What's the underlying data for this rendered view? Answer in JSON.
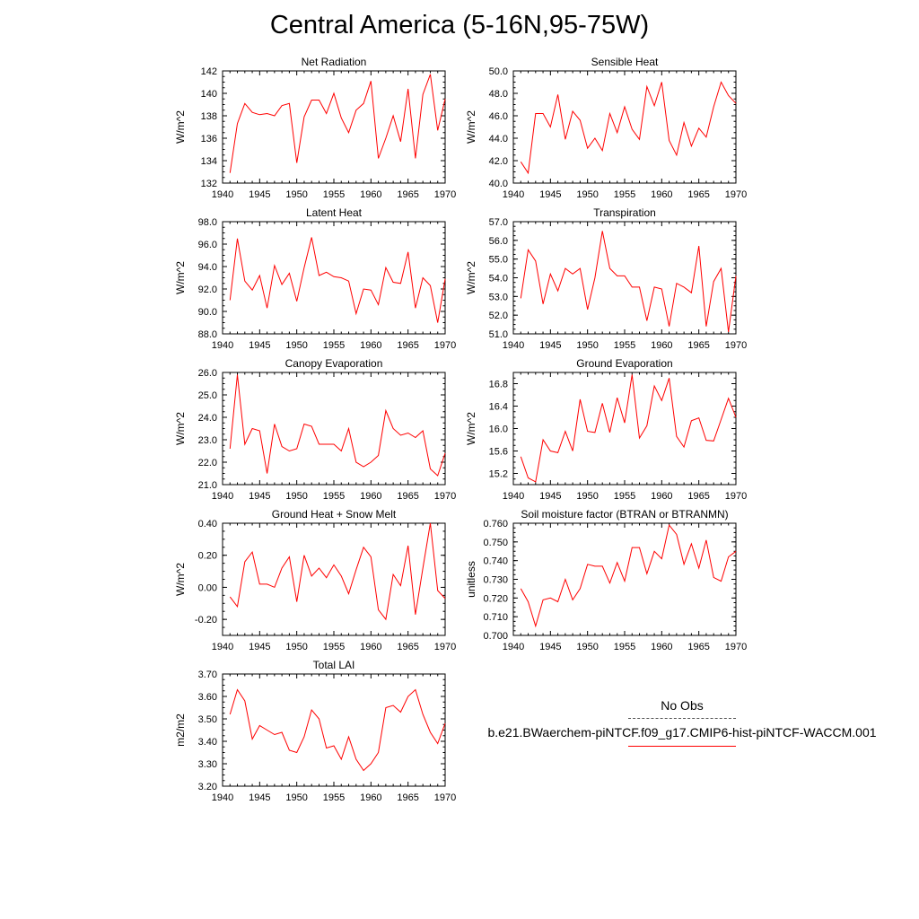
{
  "title": "Central America (5-16N,95-75W)",
  "legend": {
    "header": "No Obs",
    "series_name": "b.e21.BWaerchem-piNTCF.f09_g17.CMIP6-hist-piNTCF-WACCM.001",
    "line_color": "#ff0000"
  },
  "chart_data": [
    {
      "type": "line",
      "title": "Net Radiation",
      "ylabel": "W/m^2",
      "xlim": [
        1940,
        1970
      ],
      "ylim": [
        132,
        142
      ],
      "xticks": [
        1940,
        1945,
        1950,
        1955,
        1960,
        1965,
        1970
      ],
      "yticks": [
        132,
        134,
        136,
        138,
        140,
        142
      ],
      "ytick_labels": [
        "132",
        "134",
        "136",
        "138",
        "140",
        "142"
      ],
      "x": [
        1941,
        1942,
        1943,
        1944,
        1945,
        1946,
        1947,
        1948,
        1949,
        1950,
        1951,
        1952,
        1953,
        1954,
        1955,
        1956,
        1957,
        1958,
        1959,
        1960,
        1961,
        1962,
        1963,
        1964,
        1965,
        1966,
        1967,
        1968,
        1969,
        1970
      ],
      "values": [
        132.9,
        137.3,
        139.1,
        138.3,
        138.1,
        138.2,
        138.0,
        138.9,
        139.1,
        133.8,
        137.9,
        139.4,
        139.4,
        138.2,
        140.0,
        137.8,
        136.5,
        138.5,
        139.1,
        141.1,
        134.2,
        136.0,
        138.0,
        135.7,
        140.4,
        134.2,
        139.9,
        141.7,
        136.7,
        139.5
      ]
    },
    {
      "type": "line",
      "title": "Sensible Heat",
      "ylabel": "W/m^2",
      "xlim": [
        1940,
        1970
      ],
      "ylim": [
        40,
        50
      ],
      "xticks": [
        1940,
        1945,
        1950,
        1955,
        1960,
        1965,
        1970
      ],
      "yticks": [
        40,
        42,
        44,
        46,
        48,
        50
      ],
      "ytick_labels": [
        "40.0",
        "42.0",
        "44.0",
        "46.0",
        "48.0",
        "50.0"
      ],
      "x": [
        1941,
        1942,
        1943,
        1944,
        1945,
        1946,
        1947,
        1948,
        1949,
        1950,
        1951,
        1952,
        1953,
        1954,
        1955,
        1956,
        1957,
        1958,
        1959,
        1960,
        1961,
        1962,
        1963,
        1964,
        1965,
        1966,
        1967,
        1968,
        1969,
        1970
      ],
      "values": [
        41.9,
        40.9,
        46.2,
        46.2,
        45.0,
        47.9,
        43.9,
        46.4,
        45.6,
        43.1,
        44.0,
        42.9,
        46.2,
        44.5,
        46.8,
        44.8,
        43.9,
        48.6,
        46.9,
        49.0,
        43.8,
        42.5,
        45.4,
        43.3,
        44.9,
        44.1,
        46.8,
        49.0,
        47.8,
        47.1
      ]
    },
    {
      "type": "line",
      "title": "Latent Heat",
      "ylabel": "W/m^2",
      "xlim": [
        1940,
        1970
      ],
      "ylim": [
        88,
        98
      ],
      "xticks": [
        1940,
        1945,
        1950,
        1955,
        1960,
        1965,
        1970
      ],
      "yticks": [
        88,
        90,
        92,
        94,
        96,
        98
      ],
      "ytick_labels": [
        "88.0",
        "90.0",
        "92.0",
        "94.0",
        "96.0",
        "98.0"
      ],
      "x": [
        1941,
        1942,
        1943,
        1944,
        1945,
        1946,
        1947,
        1948,
        1949,
        1950,
        1951,
        1952,
        1953,
        1954,
        1955,
        1956,
        1957,
        1958,
        1959,
        1960,
        1961,
        1962,
        1963,
        1964,
        1965,
        1966,
        1967,
        1968,
        1969,
        1970
      ],
      "values": [
        91.0,
        96.5,
        92.7,
        91.9,
        93.2,
        90.3,
        94.1,
        92.4,
        93.4,
        90.9,
        93.9,
        96.6,
        93.2,
        93.5,
        93.1,
        93.0,
        92.7,
        89.8,
        92.0,
        91.9,
        90.6,
        93.9,
        92.6,
        92.5,
        95.3,
        90.3,
        93.0,
        92.3,
        89.0,
        92.9
      ]
    },
    {
      "type": "line",
      "title": "Transpiration",
      "ylabel": "W/m^2",
      "xlim": [
        1940,
        1970
      ],
      "ylim": [
        51,
        57
      ],
      "xticks": [
        1940,
        1945,
        1950,
        1955,
        1960,
        1965,
        1970
      ],
      "yticks": [
        51,
        52,
        53,
        54,
        55,
        56,
        57
      ],
      "ytick_labels": [
        "51.0",
        "52.0",
        "53.0",
        "54.0",
        "55.0",
        "56.0",
        "57.0"
      ],
      "x": [
        1941,
        1942,
        1943,
        1944,
        1945,
        1946,
        1947,
        1948,
        1949,
        1950,
        1951,
        1952,
        1953,
        1954,
        1955,
        1956,
        1957,
        1958,
        1959,
        1960,
        1961,
        1962,
        1963,
        1964,
        1965,
        1966,
        1967,
        1968,
        1969,
        1970
      ],
      "values": [
        52.9,
        55.5,
        54.9,
        52.6,
        54.2,
        53.3,
        54.5,
        54.2,
        54.5,
        52.3,
        54.0,
        56.5,
        54.5,
        54.1,
        54.1,
        53.5,
        53.5,
        51.7,
        53.5,
        53.4,
        51.4,
        53.7,
        53.5,
        53.2,
        55.7,
        51.4,
        53.8,
        54.5,
        51.1,
        54.1
      ]
    },
    {
      "type": "line",
      "title": "Canopy Evaporation",
      "ylabel": "W/m^2",
      "xlim": [
        1940,
        1970
      ],
      "ylim": [
        21,
        26
      ],
      "xticks": [
        1940,
        1945,
        1950,
        1955,
        1960,
        1965,
        1970
      ],
      "yticks": [
        21,
        22,
        23,
        24,
        25,
        26
      ],
      "ytick_labels": [
        "21.0",
        "22.0",
        "23.0",
        "24.0",
        "25.0",
        "26.0"
      ],
      "x": [
        1941,
        1942,
        1943,
        1944,
        1945,
        1946,
        1947,
        1948,
        1949,
        1950,
        1951,
        1952,
        1953,
        1954,
        1955,
        1956,
        1957,
        1958,
        1959,
        1960,
        1961,
        1962,
        1963,
        1964,
        1965,
        1966,
        1967,
        1968,
        1969,
        1970
      ],
      "values": [
        22.6,
        25.9,
        22.8,
        23.5,
        23.4,
        21.5,
        23.7,
        22.7,
        22.5,
        22.6,
        23.7,
        23.6,
        22.8,
        22.8,
        22.8,
        22.5,
        23.5,
        22.0,
        21.8,
        22.0,
        22.3,
        24.3,
        23.5,
        23.2,
        23.3,
        23.1,
        23.4,
        21.7,
        21.4,
        22.4
      ]
    },
    {
      "type": "line",
      "title": "Ground Evaporation",
      "ylabel": "W/m^2",
      "xlim": [
        1940,
        1970
      ],
      "ylim": [
        15.0,
        17.0
      ],
      "xticks": [
        1940,
        1945,
        1950,
        1955,
        1960,
        1965,
        1970
      ],
      "yticks": [
        15.2,
        15.6,
        16.0,
        16.4,
        16.8
      ],
      "ytick_labels": [
        "15.2",
        "15.6",
        "16.0",
        "16.4",
        "16.8"
      ],
      "x": [
        1941,
        1942,
        1943,
        1944,
        1945,
        1946,
        1947,
        1948,
        1949,
        1950,
        1951,
        1952,
        1953,
        1954,
        1955,
        1956,
        1957,
        1958,
        1959,
        1960,
        1961,
        1962,
        1963,
        1964,
        1965,
        1966,
        1967,
        1968,
        1969,
        1970
      ],
      "values": [
        15.5,
        15.12,
        15.05,
        15.8,
        15.6,
        15.57,
        15.95,
        15.6,
        16.52,
        15.95,
        15.93,
        16.45,
        15.93,
        16.55,
        16.1,
        16.96,
        15.83,
        16.05,
        16.76,
        16.5,
        16.9,
        15.86,
        15.67,
        16.14,
        16.19,
        15.79,
        15.78,
        16.16,
        16.54,
        16.2
      ]
    },
    {
      "type": "line",
      "title": "Ground Heat + Snow Melt",
      "ylabel": "W/m^2",
      "xlim": [
        1940,
        1970
      ],
      "ylim": [
        -0.3,
        0.4
      ],
      "xticks": [
        1940,
        1945,
        1950,
        1955,
        1960,
        1965,
        1970
      ],
      "yticks": [
        -0.2,
        0.0,
        0.2,
        0.4
      ],
      "ytick_labels": [
        "-0.20",
        "0.00",
        "0.20",
        "0.40"
      ],
      "x": [
        1941,
        1942,
        1943,
        1944,
        1945,
        1946,
        1947,
        1948,
        1949,
        1950,
        1951,
        1952,
        1953,
        1954,
        1955,
        1956,
        1957,
        1958,
        1959,
        1960,
        1961,
        1962,
        1963,
        1964,
        1965,
        1966,
        1967,
        1968,
        1969,
        1970
      ],
      "values": [
        -0.06,
        -0.12,
        0.16,
        0.22,
        0.02,
        0.02,
        0.0,
        0.12,
        0.19,
        -0.09,
        0.2,
        0.07,
        0.12,
        0.06,
        0.14,
        0.07,
        -0.04,
        0.11,
        0.25,
        0.19,
        -0.14,
        -0.2,
        0.08,
        0.01,
        0.26,
        -0.17,
        0.12,
        0.4,
        -0.02,
        -0.07
      ]
    },
    {
      "type": "line",
      "title": "Soil moisture factor (BTRAN or BTRANMN)",
      "ylabel": "unitless",
      "xlim": [
        1940,
        1970
      ],
      "ylim": [
        0.7,
        0.76
      ],
      "xticks": [
        1940,
        1945,
        1950,
        1955,
        1960,
        1965,
        1970
      ],
      "yticks": [
        0.7,
        0.71,
        0.72,
        0.73,
        0.74,
        0.75,
        0.76
      ],
      "ytick_labels": [
        "0.700",
        "0.710",
        "0.720",
        "0.730",
        "0.740",
        "0.750",
        "0.760"
      ],
      "x": [
        1941,
        1942,
        1943,
        1944,
        1945,
        1946,
        1947,
        1948,
        1949,
        1950,
        1951,
        1952,
        1953,
        1954,
        1955,
        1956,
        1957,
        1958,
        1959,
        1960,
        1961,
        1962,
        1963,
        1964,
        1965,
        1966,
        1967,
        1968,
        1969,
        1970
      ],
      "values": [
        0.725,
        0.718,
        0.705,
        0.719,
        0.72,
        0.718,
        0.73,
        0.719,
        0.725,
        0.738,
        0.737,
        0.737,
        0.728,
        0.739,
        0.729,
        0.747,
        0.747,
        0.733,
        0.745,
        0.741,
        0.759,
        0.754,
        0.738,
        0.749,
        0.736,
        0.751,
        0.731,
        0.729,
        0.742,
        0.745
      ]
    },
    {
      "type": "line",
      "title": "Total LAI",
      "ylabel": "m2/m2",
      "xlim": [
        1940,
        1970
      ],
      "ylim": [
        3.2,
        3.7
      ],
      "xticks": [
        1940,
        1945,
        1950,
        1955,
        1960,
        1965,
        1970
      ],
      "yticks": [
        3.2,
        3.3,
        3.4,
        3.5,
        3.6,
        3.7
      ],
      "ytick_labels": [
        "3.20",
        "3.30",
        "3.40",
        "3.50",
        "3.60",
        "3.70"
      ],
      "x": [
        1941,
        1942,
        1943,
        1944,
        1945,
        1946,
        1947,
        1948,
        1949,
        1950,
        1951,
        1952,
        1953,
        1954,
        1955,
        1956,
        1957,
        1958,
        1959,
        1960,
        1961,
        1962,
        1963,
        1964,
        1965,
        1966,
        1967,
        1968,
        1969,
        1970
      ],
      "values": [
        3.52,
        3.63,
        3.58,
        3.41,
        3.47,
        3.45,
        3.43,
        3.44,
        3.36,
        3.35,
        3.42,
        3.54,
        3.5,
        3.37,
        3.38,
        3.32,
        3.42,
        3.32,
        3.27,
        3.3,
        3.35,
        3.55,
        3.56,
        3.53,
        3.6,
        3.63,
        3.52,
        3.44,
        3.39,
        3.48
      ]
    }
  ]
}
